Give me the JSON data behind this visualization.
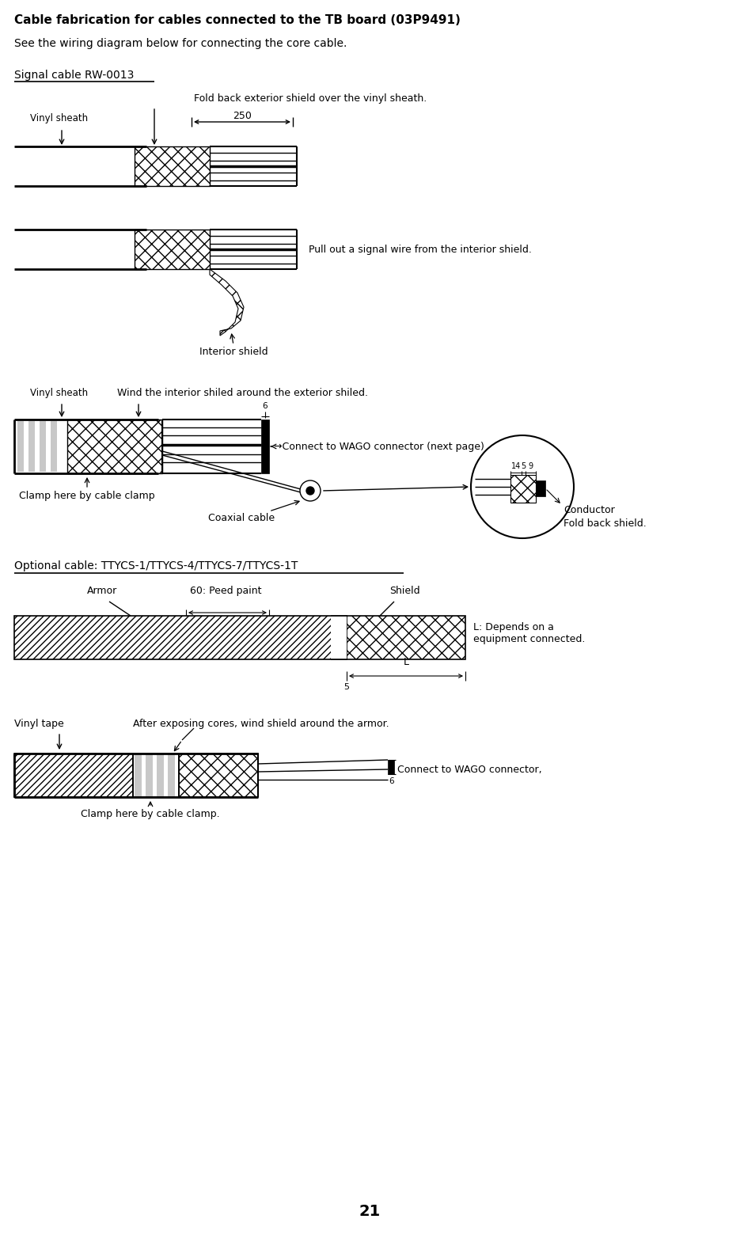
{
  "title": "Cable fabrication for cables connected to the TB board (03P9491)",
  "subtitle": "See the wiring diagram below for connecting the core cable.",
  "section1_label": "Signal cable RW-0013",
  "section2_label": "Optional cable: TTYCS-1/TTYCS-4/TTYCS-7/TTYCS-1T",
  "page_number": "21",
  "bg_color": "#ffffff",
  "line_color": "#000000"
}
